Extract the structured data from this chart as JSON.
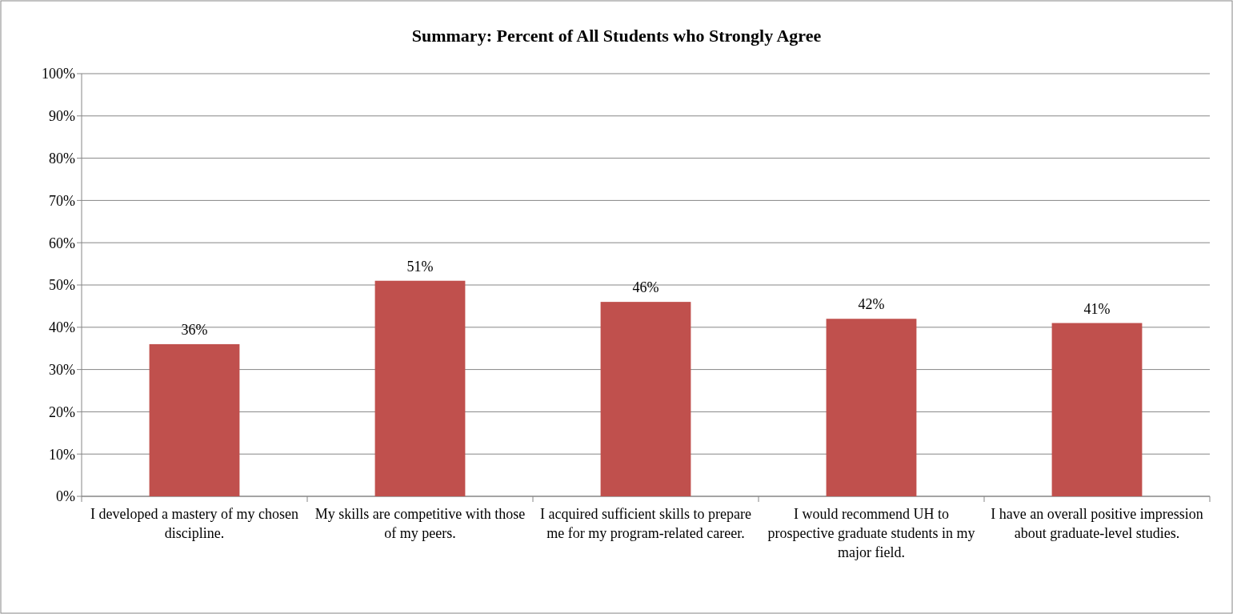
{
  "chart_data": {
    "type": "bar",
    "title": "Summary: Percent of All Students who Strongly Agree",
    "categories": [
      "I developed a mastery of my chosen discipline.",
      "My skills are competitive with those of my peers.",
      "I acquired sufficient skills to prepare me for my program-related career.",
      "I would recommend UH to prospective graduate students in my major field.",
      "I have an overall positive impression about graduate-level studies."
    ],
    "values": [
      36,
      51,
      46,
      42,
      41
    ],
    "value_labels": [
      "36%",
      "51%",
      "46%",
      "42%",
      "41%"
    ],
    "color": "#c0504d",
    "ylim": [
      0,
      100
    ],
    "yticks": [
      {
        "value": 0,
        "label": "0%"
      },
      {
        "value": 10,
        "label": "10%"
      },
      {
        "value": 20,
        "label": "20%"
      },
      {
        "value": 30,
        "label": "30%"
      },
      {
        "value": 40,
        "label": "40%"
      },
      {
        "value": 50,
        "label": "50%"
      },
      {
        "value": 60,
        "label": "60%"
      },
      {
        "value": 70,
        "label": "70%"
      },
      {
        "value": 80,
        "label": "80%"
      },
      {
        "value": 90,
        "label": "90%"
      },
      {
        "value": 100,
        "label": "100%"
      }
    ],
    "grid": "y"
  }
}
